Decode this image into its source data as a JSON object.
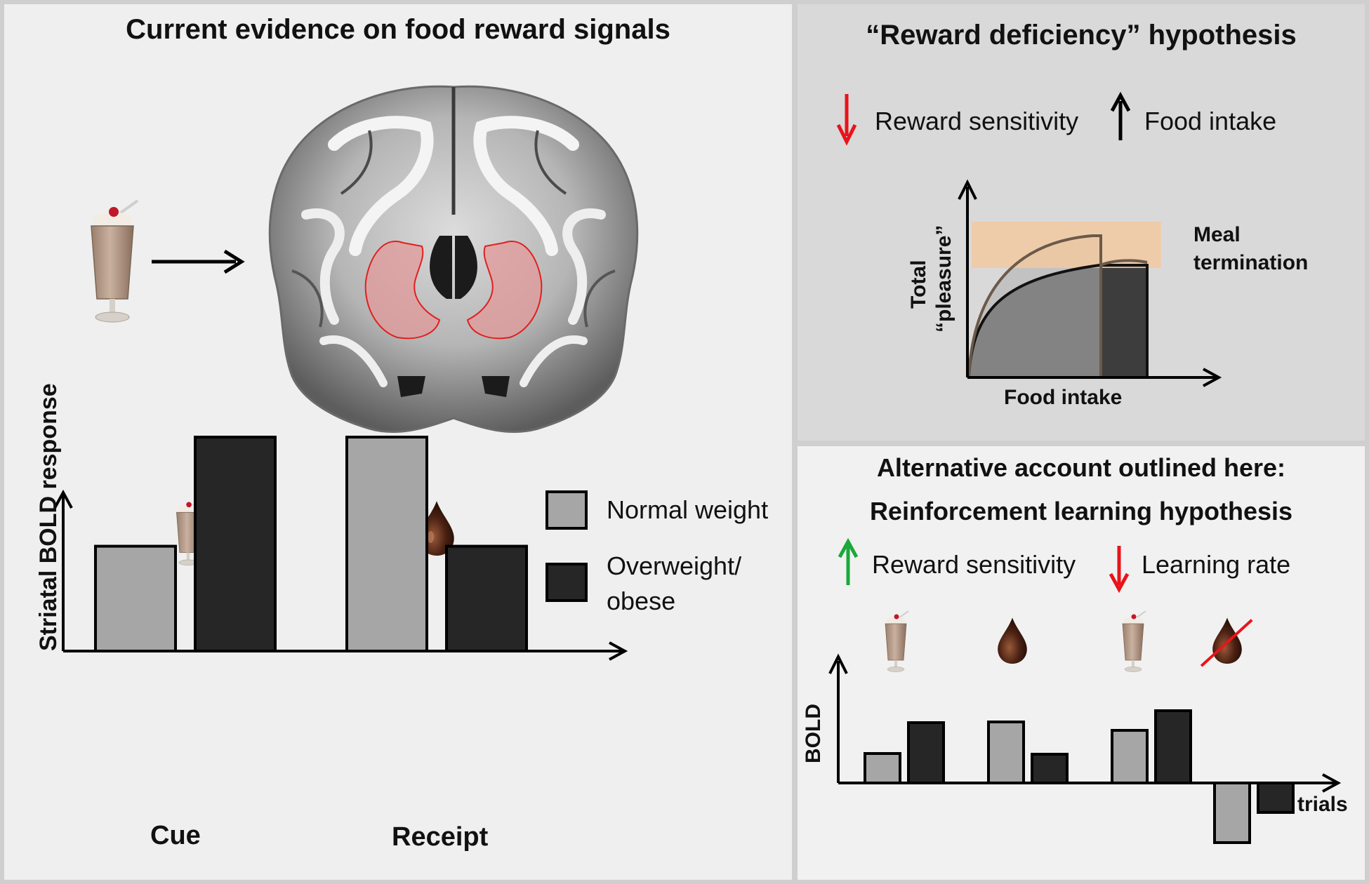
{
  "left": {
    "title": "Current evidence on food reward signals",
    "legend": {
      "normal": "Normal weight",
      "overweight_line1": "Overweight/",
      "overweight_line2": "obese",
      "normal_color": "#a6a6a6",
      "overweight_color": "#262626"
    },
    "chart_data": {
      "type": "bar",
      "categories": [
        "Cue",
        "Receipt"
      ],
      "ylabel": "Striatal BOLD response",
      "xlabel": "",
      "series": [
        {
          "name": "Normal weight",
          "values": [
            0.49,
            1.0
          ]
        },
        {
          "name": "Overweight/obese",
          "values": [
            1.0,
            0.49
          ]
        }
      ],
      "ylim": [
        0,
        1.3
      ]
    }
  },
  "top_right": {
    "title": "“Reward deficiency” hypothesis",
    "down_label": "Reward sensitivity",
    "up_label": "Food intake",
    "ylabel_line1": "Total",
    "ylabel_line2": "“pleasure”",
    "xlabel": "Food intake",
    "meal_line1": "Meal",
    "meal_line2": "termination",
    "band_color": "#f2c9a0"
  },
  "bottom_right": {
    "title_line1": "Alternative account outlined here:",
    "title_line2": "Reinforcement learning hypothesis",
    "up_label": "Reward sensitivity",
    "down_label": "Learning rate",
    "ylabel": "BOLD",
    "xlabel": "trials",
    "chart_data": {
      "type": "bar",
      "categories": [
        "cue",
        "receipt",
        "cue",
        "omitted receipt"
      ],
      "series": [
        {
          "name": "Normal weight",
          "values": [
            0.42,
            0.87,
            0.75,
            -0.85
          ]
        },
        {
          "name": "Overweight/obese",
          "values": [
            0.86,
            0.41,
            1.03,
            -0.42
          ]
        }
      ]
    }
  }
}
